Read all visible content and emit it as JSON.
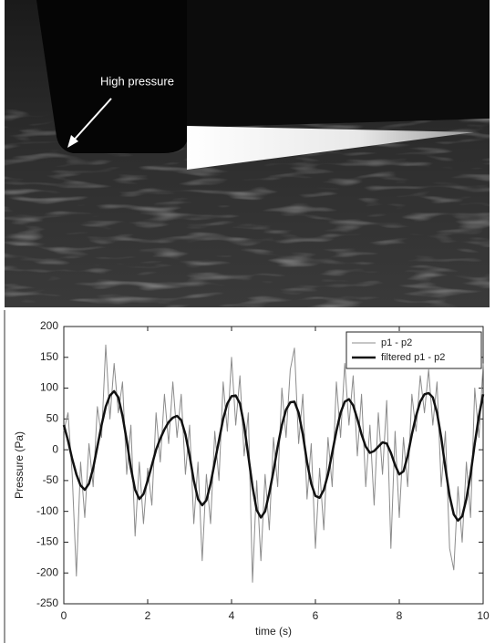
{
  "image_annotation": "High pressure",
  "chart_data": {
    "type": "line",
    "xlabel": "time (s)",
    "ylabel": "Pressure (Pa)",
    "x": [
      0,
      0.1,
      0.2,
      0.3,
      0.4,
      0.5,
      0.6,
      0.7,
      0.8,
      0.9,
      1,
      1.1,
      1.2,
      1.3,
      1.4,
      1.5,
      1.6,
      1.7,
      1.8,
      1.9,
      2,
      2.1,
      2.2,
      2.3,
      2.4,
      2.5,
      2.6,
      2.7,
      2.8,
      2.9,
      3,
      3.1,
      3.2,
      3.3,
      3.4,
      3.5,
      3.6,
      3.7,
      3.8,
      3.9,
      4,
      4.1,
      4.2,
      4.3,
      4.4,
      4.5,
      4.6,
      4.7,
      4.8,
      4.9,
      5,
      5.1,
      5.2,
      5.3,
      5.4,
      5.5,
      5.6,
      5.7,
      5.8,
      5.9,
      6,
      6.1,
      6.2,
      6.3,
      6.4,
      6.5,
      6.6,
      6.7,
      6.8,
      6.9,
      7,
      7.1,
      7.2,
      7.3,
      7.4,
      7.5,
      7.6,
      7.7,
      7.8,
      7.9,
      8,
      8.1,
      8.2,
      8.3,
      8.4,
      8.5,
      8.6,
      8.7,
      8.8,
      8.9,
      9,
      9.1,
      9.2,
      9.3,
      9.4,
      9.5,
      9.6,
      9.7,
      9.8,
      9.9,
      10
    ],
    "series": [
      {
        "name": "p1 - p2",
        "color": "#8c8c8c",
        "width": 1,
        "values": [
          30,
          60,
          -40,
          -205,
          -20,
          -110,
          10,
          -60,
          70,
          20,
          170,
          50,
          140,
          60,
          110,
          -40,
          40,
          -140,
          -20,
          -120,
          -30,
          -90,
          60,
          -20,
          90,
          10,
          110,
          20,
          90,
          -40,
          40,
          -120,
          -20,
          -180,
          -40,
          -120,
          30,
          -50,
          110,
          30,
          150,
          40,
          120,
          -10,
          60,
          -215,
          -50,
          -180,
          -40,
          -130,
          20,
          -60,
          100,
          20,
          130,
          165,
          10,
          90,
          -80,
          10,
          -160,
          -30,
          -130,
          20,
          -60,
          110,
          20,
          140,
          40,
          120,
          -10,
          90,
          -60,
          40,
          -90,
          60,
          -40,
          80,
          -160,
          30,
          -110,
          20,
          -60,
          90,
          30,
          120,
          60,
          130,
          40,
          110,
          -60,
          30,
          -160,
          -195,
          -60,
          -150,
          -20,
          -110,
          100,
          20,
          140
        ]
      },
      {
        "name": "filtered p1 - p2",
        "color": "#111111",
        "width": 2.5,
        "values": [
          40,
          15,
          -15,
          -40,
          -58,
          -65,
          -55,
          -30,
          5,
          40,
          70,
          88,
          95,
          85,
          55,
          15,
          -30,
          -65,
          -80,
          -72,
          -50,
          -25,
          0,
          18,
          33,
          45,
          52,
          55,
          48,
          25,
          -10,
          -50,
          -80,
          -90,
          -82,
          -55,
          -20,
          15,
          50,
          75,
          87,
          88,
          75,
          40,
          -10,
          -60,
          -98,
          -110,
          -100,
          -70,
          -35,
          5,
          40,
          65,
          77,
          78,
          60,
          25,
          -20,
          -55,
          -75,
          -78,
          -65,
          -40,
          -5,
          30,
          60,
          78,
          82,
          72,
          50,
          25,
          5,
          -5,
          -2,
          5,
          12,
          10,
          -5,
          -25,
          -40,
          -35,
          -10,
          25,
          55,
          78,
          90,
          92,
          85,
          60,
          20,
          -30,
          -75,
          -105,
          -115,
          -108,
          -80,
          -40,
          10,
          55,
          90
        ]
      }
    ],
    "xlim": [
      0,
      10
    ],
    "xticks": [
      0,
      2,
      4,
      6,
      8,
      10
    ],
    "ylim": [
      -250,
      200
    ],
    "yticks": [
      -250,
      -200,
      -150,
      -100,
      -50,
      0,
      50,
      100,
      150,
      200
    ],
    "legend": "upper right"
  }
}
